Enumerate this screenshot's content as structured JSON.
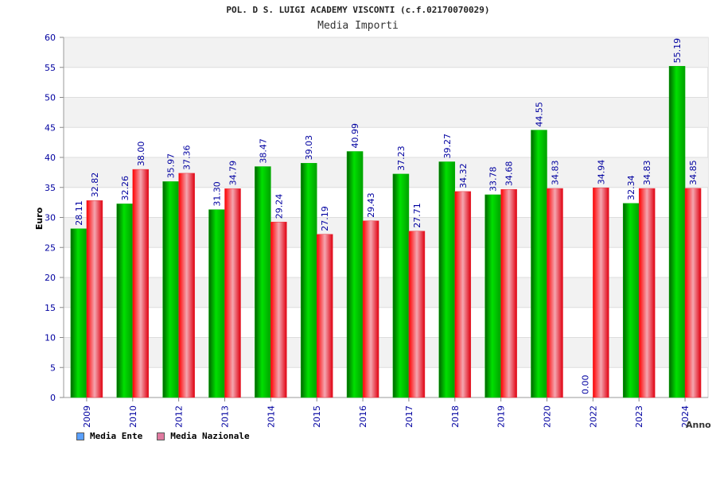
{
  "colors": {
    "ente": "#00b400",
    "nazionale": "#e8303a",
    "legend_ente": "#5aa0ff",
    "legend_nazionale": "#e07aa0",
    "axis_text": "#0000a0",
    "band": "#f2f2f2"
  },
  "chart_data": {
    "type": "bar",
    "title": "POL. D S. LUIGI ACADEMY VISCONTI (c.f.02170070029)",
    "subtitle": "Media Importi",
    "xlabel": "Anno",
    "ylabel": "Euro",
    "ylim": [
      0,
      60
    ],
    "yticks": [
      "0",
      "5",
      "10",
      "15",
      "20",
      "25",
      "30",
      "35",
      "40",
      "45",
      "50",
      "55",
      "60"
    ],
    "categories": [
      "2009",
      "2010",
      "2012",
      "2013",
      "2014",
      "2015",
      "2016",
      "2017",
      "2018",
      "2019",
      "2020",
      "2022",
      "2023",
      "2024"
    ],
    "series": [
      {
        "name": "Media Ente",
        "values": [
          28.11,
          32.26,
          35.97,
          31.3,
          38.47,
          39.03,
          40.99,
          37.23,
          39.27,
          33.78,
          44.55,
          0.0,
          32.34,
          55.19
        ],
        "labels": [
          "28.11",
          "32.26",
          "35.97",
          "31.30",
          "38.47",
          "39.03",
          "40.99",
          "37.23",
          "39.27",
          "33.78",
          "44.55",
          "0.00",
          "32.34",
          "55.19"
        ]
      },
      {
        "name": "Media Nazionale",
        "values": [
          32.82,
          38.0,
          37.36,
          34.79,
          29.24,
          27.19,
          29.43,
          27.71,
          34.32,
          34.68,
          34.83,
          34.94,
          34.83,
          34.85
        ],
        "labels": [
          "32.82",
          "38.00",
          "37.36",
          "34.79",
          "29.24",
          "27.19",
          "29.43",
          "27.71",
          "34.32",
          "34.68",
          "34.83",
          "34.94",
          "34.83",
          "34.85"
        ]
      }
    ],
    "legend": [
      "Media Ente",
      "Media Nazionale"
    ]
  }
}
